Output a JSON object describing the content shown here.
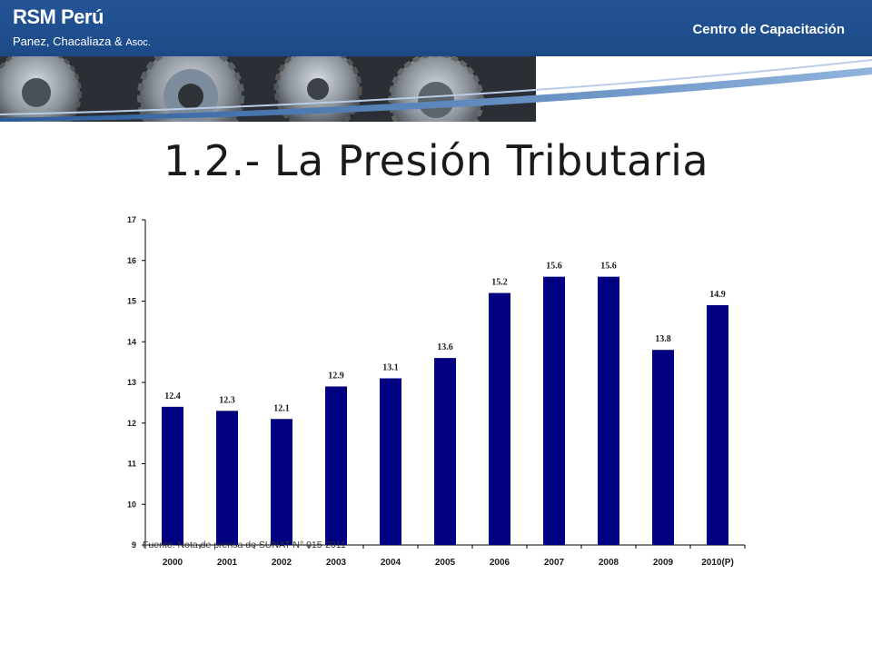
{
  "header": {
    "logo_line1": "RSM Perú",
    "logo_line2": "Panez, Chacaliaza &",
    "logo_line2_suffix": "Asoc.",
    "section": "Centro de Capacitación",
    "bar_color": "#1e4d8c"
  },
  "title": "1.2.- La Presión Tributaria",
  "source_note": "Fuente: Nota de prensa de SUNAT N° 015-2011",
  "chart_data": {
    "type": "bar",
    "categories": [
      "2000",
      "2001",
      "2002",
      "2003",
      "2004",
      "2005",
      "2006",
      "2007",
      "2008",
      "2009",
      "2010(P)"
    ],
    "values": [
      12.4,
      12.3,
      12.1,
      12.9,
      13.1,
      13.6,
      15.2,
      15.6,
      15.6,
      13.8,
      14.9
    ],
    "data_labels": [
      "12.4",
      "12.3",
      "12.1",
      "12.9",
      "13.1",
      "13.6",
      "15.2",
      "15.6",
      "15.6",
      "13.8",
      "14.9"
    ],
    "ylim": [
      9,
      17
    ],
    "yticks": [
      "9",
      "10",
      "11",
      "12",
      "13",
      "14",
      "15",
      "16",
      "17"
    ],
    "bar_color": "#000080",
    "grid": false,
    "title": "",
    "xlabel": "",
    "ylabel": ""
  }
}
